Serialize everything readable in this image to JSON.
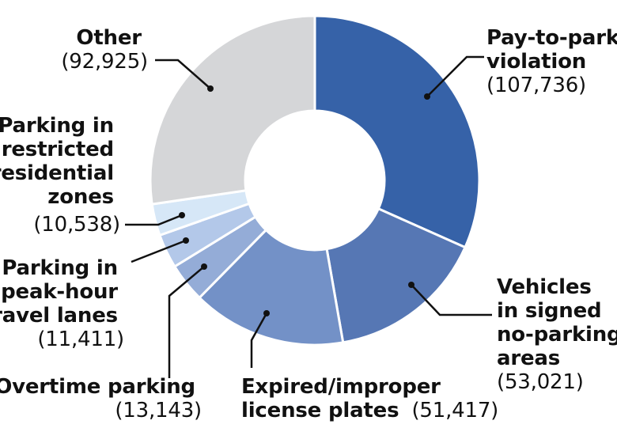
{
  "chart_data": {
    "type": "pie",
    "donut": true,
    "title": "",
    "slices": [
      {
        "name": "Pay-to-park violation",
        "label_lines": [
          "Pay-to-park",
          "violation"
        ],
        "value_label": "(107,736)",
        "value": 107736,
        "color": "#3662a8"
      },
      {
        "name": "Vehicles in signed no-parking areas",
        "label_lines": [
          "Vehicles",
          "in signed",
          "no-parking",
          "areas"
        ],
        "value_label": "(53,021)",
        "value": 53021,
        "color": "#5677b4"
      },
      {
        "name": "Expired/improper license plates",
        "label_lines": [
          "Expired/improper",
          "license plates"
        ],
        "value_label": "(51,417)",
        "value": 51417,
        "color": "#7391c7"
      },
      {
        "name": "Overtime parking",
        "label_lines": [
          "Overtime parking"
        ],
        "value_label": "(13,143)",
        "value": 13143,
        "color": "#94acd7"
      },
      {
        "name": "Parking in peak-hour travel lanes",
        "label_lines": [
          "Parking in",
          "peak-hour",
          "travel lanes"
        ],
        "value_label": "(11,411)",
        "value": 11411,
        "color": "#b3c8e9"
      },
      {
        "name": "Parking in restricted residential zones",
        "label_lines": [
          "Parking in",
          "restricted",
          "residential",
          "zones"
        ],
        "value_label": "(10,538)",
        "value": 10538,
        "color": "#d6e7f7"
      },
      {
        "name": "Other",
        "label_lines": [
          "Other"
        ],
        "value_label": "(92,925)",
        "value": 92925,
        "color": "#d5d6d8"
      }
    ],
    "start_angle_deg": 0,
    "direction": "clockwise",
    "legend": "none"
  }
}
